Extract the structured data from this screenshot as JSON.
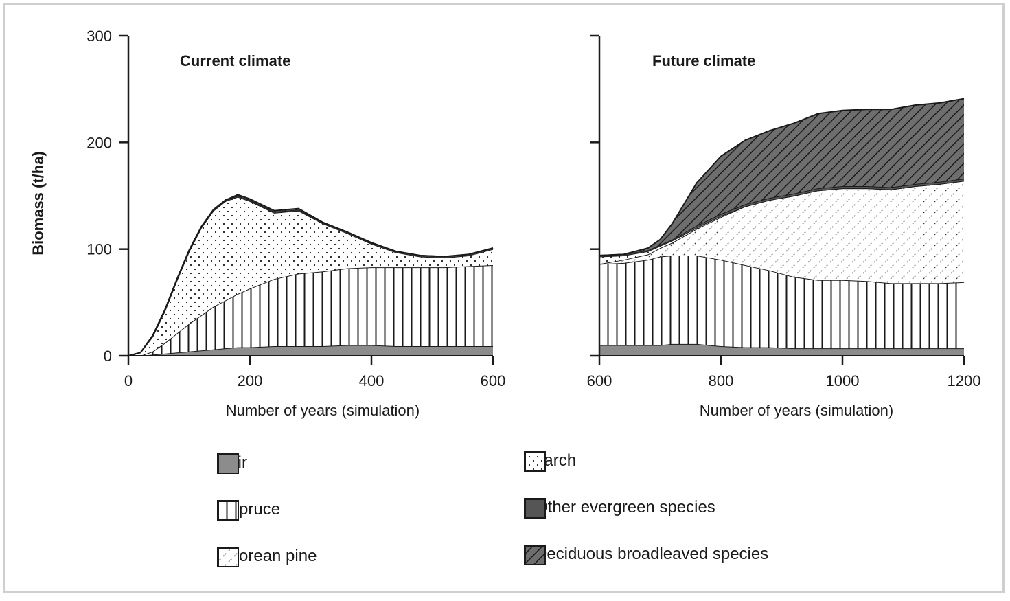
{
  "y_axis_label": "Biomass (t/ha)",
  "colors": {
    "fir": "#8c8c8c",
    "other_evergreen": "#555555",
    "deciduous": "#6e6e6e",
    "outline": "#1a1a1a",
    "axis": "#1a1a1a"
  },
  "legend": [
    {
      "key": "fir",
      "label": "Fir",
      "pattern": "fir"
    },
    {
      "key": "spruce",
      "label": "Spruce",
      "pattern": "spruce"
    },
    {
      "key": "korean_pine",
      "label": "Korean pine",
      "pattern": "korean_pine"
    },
    {
      "key": "larch",
      "label": "Larch",
      "pattern": "larch"
    },
    {
      "key": "other_evergreen",
      "label": "Other evergreen species",
      "pattern": "other_evergreen"
    },
    {
      "key": "deciduous",
      "label": "Deciduous broadleaved species",
      "pattern": "deciduous"
    }
  ],
  "chart_data": [
    {
      "type": "area",
      "stacked": true,
      "title": "Current climate",
      "xlabel": "Number of years (simulation)",
      "ylabel": "Biomass (t/ha)",
      "xlim": [
        0,
        600
      ],
      "ylim": [
        0,
        300
      ],
      "xticks": [
        0,
        200,
        400,
        600
      ],
      "yticks": [
        0,
        100,
        200,
        300
      ],
      "x": [
        0,
        20,
        40,
        60,
        80,
        100,
        120,
        140,
        160,
        180,
        200,
        240,
        280,
        320,
        360,
        400,
        440,
        480,
        520,
        560,
        600
      ],
      "series": [
        {
          "name": "Fir",
          "pattern": "fir",
          "values": [
            0,
            0,
            1,
            2,
            3,
            4,
            5,
            6,
            7,
            8,
            8,
            9,
            9,
            9,
            10,
            10,
            9,
            9,
            9,
            9,
            9
          ]
        },
        {
          "name": "Spruce",
          "pattern": "spruce",
          "values": [
            0,
            0,
            3,
            10,
            18,
            26,
            33,
            40,
            45,
            50,
            55,
            63,
            68,
            70,
            72,
            73,
            74,
            74,
            74,
            75,
            76
          ]
        },
        {
          "name": "Korean pine",
          "pattern": "korean_pine",
          "values": [
            0,
            0,
            0,
            0,
            0,
            0,
            0,
            0,
            0,
            0,
            0,
            0,
            0,
            0,
            0,
            0,
            0,
            0,
            0,
            0,
            0
          ]
        },
        {
          "name": "Larch",
          "pattern": "larch",
          "values": [
            0,
            3,
            14,
            30,
            50,
            68,
            82,
            90,
            93,
            91,
            82,
            62,
            59,
            45,
            33,
            22,
            14,
            10,
            9,
            10,
            15
          ]
        },
        {
          "name": "Other evergreen species",
          "pattern": "other_evergreen",
          "values": [
            0,
            0,
            1,
            1,
            1,
            1,
            1,
            1,
            1,
            1,
            1,
            1,
            1,
            1,
            1,
            1,
            1,
            1,
            1,
            1,
            1
          ]
        },
        {
          "name": "Deciduous broadleaved species",
          "pattern": "deciduous",
          "values": [
            0,
            0,
            0,
            0,
            0,
            0,
            0,
            0,
            0,
            1,
            1,
            1,
            1,
            0,
            0,
            0,
            0,
            0,
            0,
            0,
            0
          ]
        }
      ]
    },
    {
      "type": "area",
      "stacked": true,
      "title": "Future climate",
      "xlabel": "Number of years (simulation)",
      "ylabel": "",
      "xlim": [
        600,
        1200
      ],
      "ylim": [
        0,
        300
      ],
      "xticks": [
        600,
        800,
        1000,
        1200
      ],
      "yticks": [
        0,
        100,
        200,
        300
      ],
      "x": [
        600,
        640,
        680,
        700,
        720,
        760,
        800,
        840,
        880,
        920,
        960,
        1000,
        1040,
        1080,
        1120,
        1160,
        1200
      ],
      "series": [
        {
          "name": "Fir",
          "pattern": "fir",
          "values": [
            10,
            10,
            10,
            10,
            11,
            11,
            9,
            8,
            8,
            7,
            7,
            7,
            7,
            7,
            7,
            7,
            7
          ]
        },
        {
          "name": "Spruce",
          "pattern": "spruce",
          "values": [
            76,
            77,
            80,
            83,
            83,
            83,
            81,
            77,
            72,
            67,
            64,
            64,
            63,
            61,
            61,
            61,
            62
          ]
        },
        {
          "name": "Korean pine",
          "pattern": "korean_pine",
          "values": [
            0,
            3,
            5,
            8,
            12,
            25,
            40,
            55,
            66,
            76,
            84,
            86,
            87,
            88,
            91,
            93,
            95
          ]
        },
        {
          "name": "Larch",
          "pattern": "larch",
          "values": [
            7,
            4,
            3,
            2,
            2,
            1,
            1,
            0,
            0,
            0,
            0,
            0,
            0,
            0,
            0,
            0,
            0
          ]
        },
        {
          "name": "Other evergreen species",
          "pattern": "other_evergreen",
          "values": [
            1,
            1,
            1,
            1,
            1,
            2,
            2,
            2,
            2,
            2,
            2,
            2,
            2,
            2,
            2,
            2,
            2
          ]
        },
        {
          "name": "Deciduous broadleaved species",
          "pattern": "deciduous",
          "values": [
            0,
            0,
            2,
            5,
            15,
            40,
            54,
            60,
            63,
            66,
            70,
            71,
            72,
            73,
            74,
            74,
            75
          ]
        }
      ]
    }
  ]
}
